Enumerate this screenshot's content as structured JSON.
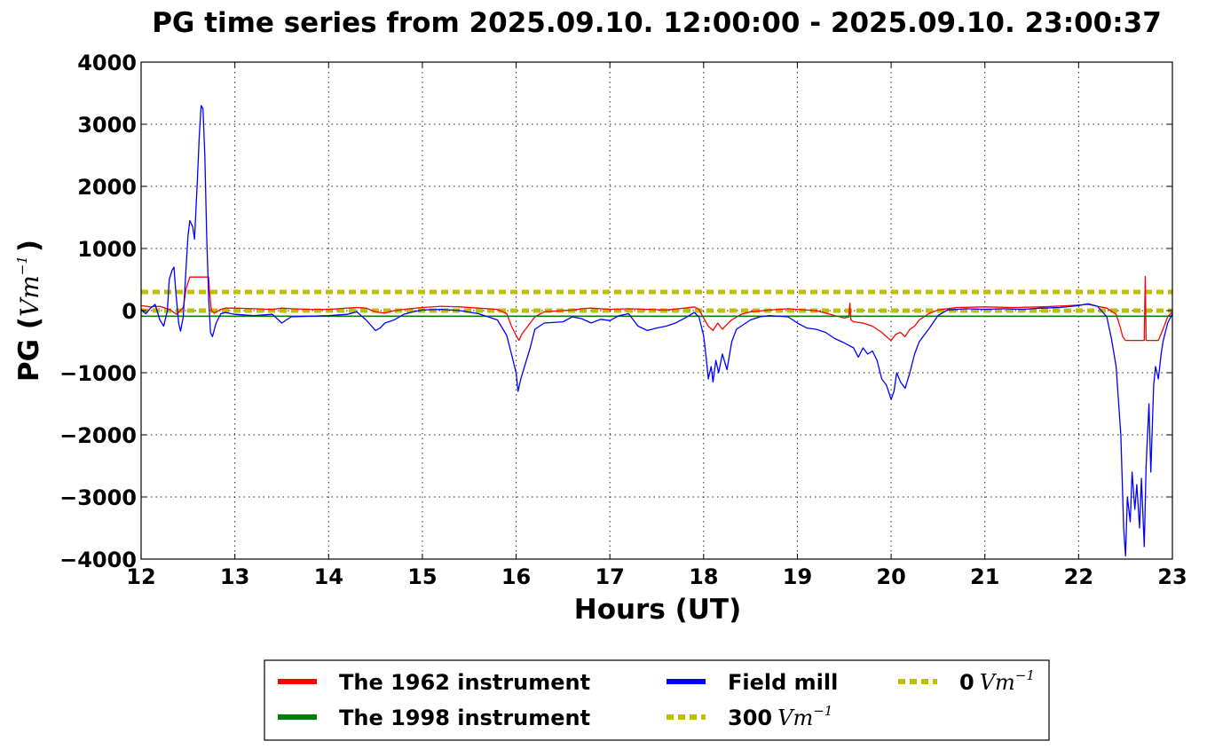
{
  "chart_data": {
    "type": "line",
    "title": "PG time series from 2025.09.10. 12:00:00 - 2025.09.10. 23:00:37",
    "xlabel": "Hours (UT)",
    "ylabel": {
      "text": "PG (",
      "unit": "Vm",
      "exp": "−1",
      "close": ")"
    },
    "xlim": [
      12,
      23
    ],
    "ylim": [
      -4000,
      4000
    ],
    "xticks": [
      "12",
      "13",
      "14",
      "15",
      "16",
      "17",
      "18",
      "19",
      "20",
      "21",
      "22",
      "23"
    ],
    "yticks": [
      "4000",
      "3000",
      "2000",
      "1000",
      "0",
      "−1000",
      "−2000",
      "−3000",
      "−4000"
    ],
    "grid": true,
    "legend_position": "below-center",
    "colors": {
      "red": "#ff0000",
      "green": "#008000",
      "blue": "#0000ff",
      "olive": "#bfbf00"
    },
    "series": [
      {
        "name": "The 1962 instrument",
        "color": "#ff0000",
        "points": [
          [
            12.0,
            80
          ],
          [
            12.1,
            60
          ],
          [
            12.2,
            70
          ],
          [
            12.3,
            20
          ],
          [
            12.38,
            -60
          ],
          [
            12.45,
            50
          ],
          [
            12.48,
            350
          ],
          [
            12.5,
            450
          ],
          [
            12.52,
            540
          ],
          [
            12.55,
            540
          ],
          [
            12.6,
            540
          ],
          [
            12.7,
            540
          ],
          [
            12.72,
            540
          ],
          [
            12.73,
            300
          ],
          [
            12.75,
            0
          ],
          [
            12.78,
            -40
          ],
          [
            12.85,
            20
          ],
          [
            12.9,
            40
          ],
          [
            13.0,
            40
          ],
          [
            13.2,
            30
          ],
          [
            13.4,
            20
          ],
          [
            13.5,
            40
          ],
          [
            13.6,
            30
          ],
          [
            13.8,
            20
          ],
          [
            14.0,
            20
          ],
          [
            14.2,
            40
          ],
          [
            14.3,
            50
          ],
          [
            14.4,
            40
          ],
          [
            14.5,
            -20
          ],
          [
            14.6,
            -40
          ],
          [
            14.7,
            0
          ],
          [
            14.8,
            20
          ],
          [
            15.0,
            50
          ],
          [
            15.2,
            70
          ],
          [
            15.4,
            60
          ],
          [
            15.6,
            40
          ],
          [
            15.8,
            20
          ],
          [
            15.9,
            -50
          ],
          [
            15.95,
            -250
          ],
          [
            16.0,
            -400
          ],
          [
            16.03,
            -480
          ],
          [
            16.06,
            -380
          ],
          [
            16.1,
            -300
          ],
          [
            16.15,
            -200
          ],
          [
            16.2,
            -100
          ],
          [
            16.3,
            -20
          ],
          [
            16.5,
            0
          ],
          [
            16.6,
            10
          ],
          [
            16.7,
            30
          ],
          [
            16.8,
            40
          ],
          [
            17.0,
            20
          ],
          [
            17.2,
            30
          ],
          [
            17.4,
            20
          ],
          [
            17.6,
            10
          ],
          [
            17.8,
            40
          ],
          [
            17.9,
            60
          ],
          [
            17.95,
            20
          ],
          [
            18.0,
            -120
          ],
          [
            18.05,
            -250
          ],
          [
            18.1,
            -320
          ],
          [
            18.15,
            -200
          ],
          [
            18.2,
            -300
          ],
          [
            18.25,
            -220
          ],
          [
            18.3,
            -150
          ],
          [
            18.4,
            -60
          ],
          [
            18.5,
            -20
          ],
          [
            18.7,
            10
          ],
          [
            18.9,
            30
          ],
          [
            19.0,
            20
          ],
          [
            19.2,
            0
          ],
          [
            19.4,
            -80
          ],
          [
            19.5,
            -120
          ],
          [
            19.55,
            -100
          ],
          [
            19.56,
            120
          ],
          [
            19.57,
            -150
          ],
          [
            19.6,
            -180
          ],
          [
            19.7,
            -200
          ],
          [
            19.8,
            -250
          ],
          [
            19.85,
            -300
          ],
          [
            19.9,
            -350
          ],
          [
            19.95,
            -420
          ],
          [
            20.0,
            -480
          ],
          [
            20.05,
            -380
          ],
          [
            20.1,
            -350
          ],
          [
            20.15,
            -420
          ],
          [
            20.2,
            -300
          ],
          [
            20.25,
            -250
          ],
          [
            20.3,
            -150
          ],
          [
            20.4,
            -50
          ],
          [
            20.5,
            10
          ],
          [
            20.7,
            50
          ],
          [
            21.0,
            60
          ],
          [
            21.3,
            50
          ],
          [
            21.6,
            60
          ],
          [
            21.9,
            80
          ],
          [
            22.0,
            90
          ],
          [
            22.1,
            100
          ],
          [
            22.2,
            70
          ],
          [
            22.3,
            40
          ],
          [
            22.4,
            -60
          ],
          [
            22.43,
            -200
          ],
          [
            22.45,
            -300
          ],
          [
            22.47,
            -420
          ],
          [
            22.5,
            -480
          ],
          [
            22.6,
            -480
          ],
          [
            22.7,
            -480
          ],
          [
            22.71,
            550
          ],
          [
            22.72,
            -480
          ],
          [
            22.8,
            -480
          ],
          [
            22.85,
            -480
          ],
          [
            22.9,
            -300
          ],
          [
            22.95,
            -100
          ],
          [
            23.0,
            -20
          ]
        ]
      },
      {
        "name": "The 1998 instrument",
        "color": "#008000",
        "points": [
          [
            12.0,
            -90
          ],
          [
            23.0,
            -90
          ]
        ]
      },
      {
        "name": "Field mill",
        "color": "#0000ff",
        "points": [
          [
            12.0,
            20
          ],
          [
            12.05,
            -50
          ],
          [
            12.1,
            40
          ],
          [
            12.15,
            100
          ],
          [
            12.2,
            -150
          ],
          [
            12.24,
            -250
          ],
          [
            12.28,
            0
          ],
          [
            12.3,
            500
          ],
          [
            12.33,
            650
          ],
          [
            12.35,
            700
          ],
          [
            12.37,
            300
          ],
          [
            12.4,
            -200
          ],
          [
            12.42,
            -330
          ],
          [
            12.45,
            -100
          ],
          [
            12.48,
            700
          ],
          [
            12.5,
            1200
          ],
          [
            12.52,
            1450
          ],
          [
            12.55,
            1350
          ],
          [
            12.57,
            1150
          ],
          [
            12.6,
            2100
          ],
          [
            12.62,
            2800
          ],
          [
            12.64,
            3300
          ],
          [
            12.66,
            3250
          ],
          [
            12.68,
            2500
          ],
          [
            12.7,
            1200
          ],
          [
            12.72,
            200
          ],
          [
            12.74,
            -350
          ],
          [
            12.76,
            -420
          ],
          [
            12.8,
            -200
          ],
          [
            12.85,
            -50
          ],
          [
            12.9,
            -30
          ],
          [
            13.0,
            -60
          ],
          [
            13.2,
            -80
          ],
          [
            13.4,
            -60
          ],
          [
            13.5,
            -200
          ],
          [
            13.6,
            -100
          ],
          [
            13.8,
            -90
          ],
          [
            14.0,
            -80
          ],
          [
            14.2,
            -60
          ],
          [
            14.3,
            -20
          ],
          [
            14.4,
            -150
          ],
          [
            14.5,
            -320
          ],
          [
            14.55,
            -280
          ],
          [
            14.6,
            -200
          ],
          [
            14.7,
            -150
          ],
          [
            14.8,
            -60
          ],
          [
            14.9,
            -20
          ],
          [
            15.0,
            10
          ],
          [
            15.2,
            20
          ],
          [
            15.4,
            0
          ],
          [
            15.6,
            -50
          ],
          [
            15.7,
            -100
          ],
          [
            15.8,
            -150
          ],
          [
            15.9,
            -400
          ],
          [
            15.95,
            -700
          ],
          [
            16.0,
            -1000
          ],
          [
            16.02,
            -1300
          ],
          [
            16.05,
            -1100
          ],
          [
            16.1,
            -850
          ],
          [
            16.15,
            -600
          ],
          [
            16.2,
            -300
          ],
          [
            16.3,
            -200
          ],
          [
            16.5,
            -180
          ],
          [
            16.6,
            -100
          ],
          [
            16.7,
            -130
          ],
          [
            16.8,
            -200
          ],
          [
            16.9,
            -140
          ],
          [
            17.0,
            -160
          ],
          [
            17.1,
            -80
          ],
          [
            17.2,
            -50
          ],
          [
            17.3,
            -250
          ],
          [
            17.4,
            -320
          ],
          [
            17.5,
            -280
          ],
          [
            17.6,
            -250
          ],
          [
            17.7,
            -200
          ],
          [
            17.8,
            -120
          ],
          [
            17.9,
            -30
          ],
          [
            17.95,
            -100
          ],
          [
            18.0,
            -400
          ],
          [
            18.03,
            -800
          ],
          [
            18.05,
            -1100
          ],
          [
            18.08,
            -900
          ],
          [
            18.1,
            -1150
          ],
          [
            18.13,
            -800
          ],
          [
            18.16,
            -1000
          ],
          [
            18.2,
            -700
          ],
          [
            18.25,
            -950
          ],
          [
            18.3,
            -500
          ],
          [
            18.35,
            -300
          ],
          [
            18.4,
            -250
          ],
          [
            18.5,
            -150
          ],
          [
            18.6,
            -100
          ],
          [
            18.7,
            -80
          ],
          [
            18.9,
            -100
          ],
          [
            19.0,
            -200
          ],
          [
            19.1,
            -280
          ],
          [
            19.2,
            -300
          ],
          [
            19.3,
            -350
          ],
          [
            19.4,
            -450
          ],
          [
            19.5,
            -520
          ],
          [
            19.6,
            -600
          ],
          [
            19.65,
            -750
          ],
          [
            19.7,
            -600
          ],
          [
            19.75,
            -700
          ],
          [
            19.8,
            -650
          ],
          [
            19.85,
            -800
          ],
          [
            19.9,
            -1100
          ],
          [
            19.95,
            -1200
          ],
          [
            20.0,
            -1430
          ],
          [
            20.03,
            -1300
          ],
          [
            20.06,
            -1000
          ],
          [
            20.1,
            -1150
          ],
          [
            20.15,
            -1250
          ],
          [
            20.2,
            -1000
          ],
          [
            20.25,
            -700
          ],
          [
            20.3,
            -500
          ],
          [
            20.4,
            -300
          ],
          [
            20.5,
            -80
          ],
          [
            20.6,
            10
          ],
          [
            20.8,
            30
          ],
          [
            21.0,
            20
          ],
          [
            21.2,
            30
          ],
          [
            21.4,
            20
          ],
          [
            21.6,
            40
          ],
          [
            21.8,
            50
          ],
          [
            22.0,
            80
          ],
          [
            22.1,
            110
          ],
          [
            22.2,
            70
          ],
          [
            22.3,
            -100
          ],
          [
            22.35,
            -450
          ],
          [
            22.4,
            -900
          ],
          [
            22.45,
            -2000
          ],
          [
            22.48,
            -3500
          ],
          [
            22.5,
            -3950
          ],
          [
            22.52,
            -3000
          ],
          [
            22.55,
            -3400
          ],
          [
            22.57,
            -2600
          ],
          [
            22.6,
            -3200
          ],
          [
            22.62,
            -2800
          ],
          [
            22.65,
            -3500
          ],
          [
            22.67,
            -2700
          ],
          [
            22.7,
            -3800
          ],
          [
            22.72,
            -2500
          ],
          [
            22.75,
            -1500
          ],
          [
            22.77,
            -2600
          ],
          [
            22.8,
            -1200
          ],
          [
            22.82,
            -900
          ],
          [
            22.85,
            -1100
          ],
          [
            22.88,
            -700
          ],
          [
            22.9,
            -500
          ],
          [
            22.95,
            -200
          ],
          [
            23.0,
            -50
          ]
        ]
      },
      {
        "name": "300",
        "unit": "Vm",
        "exp": "−1",
        "color": "#bfbf00",
        "dashed": true,
        "points": [
          [
            12.0,
            300
          ],
          [
            23.0,
            300
          ]
        ]
      },
      {
        "name": "0",
        "unit": "Vm",
        "exp": "−1",
        "color": "#bfbf00",
        "dashed": true,
        "points": [
          [
            12.0,
            0
          ],
          [
            23.0,
            0
          ]
        ]
      }
    ]
  }
}
